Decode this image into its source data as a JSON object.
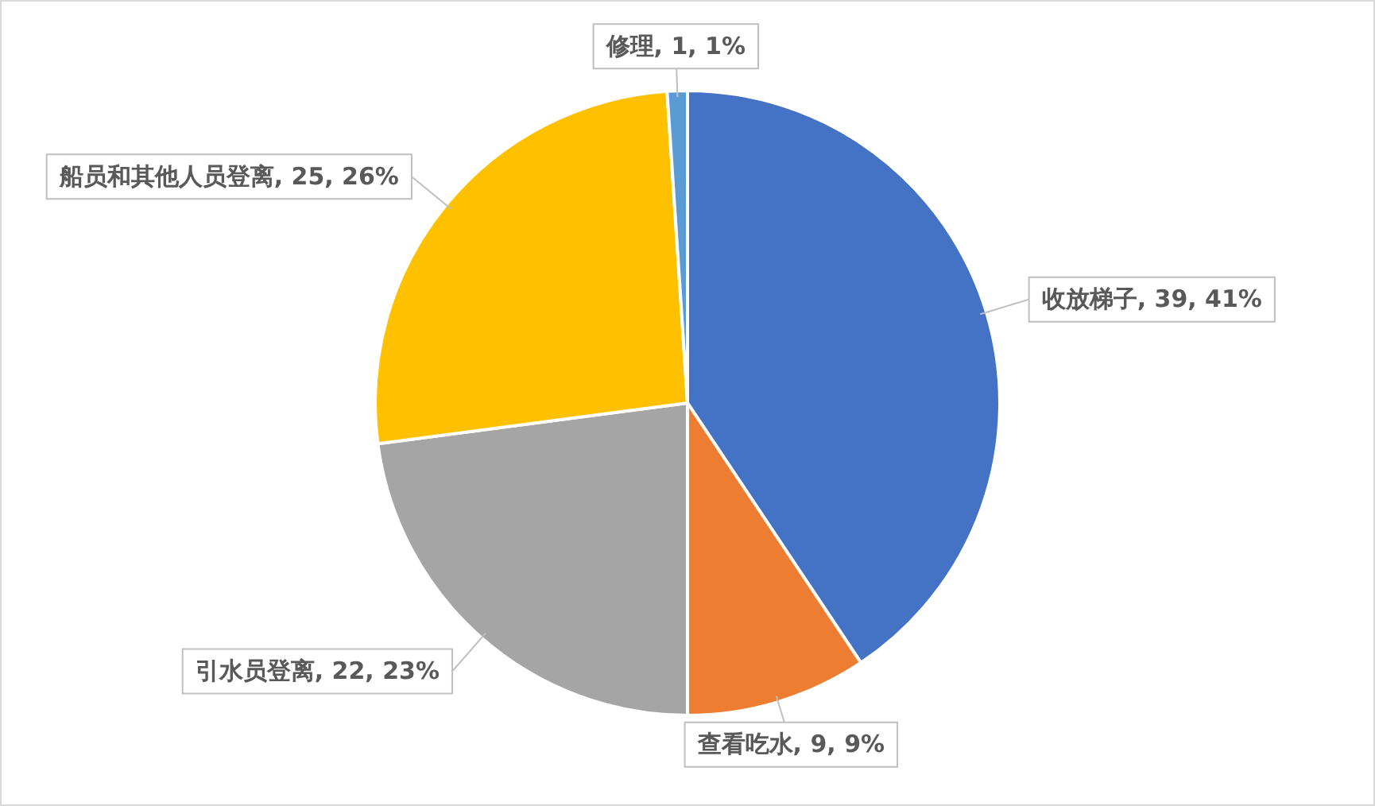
{
  "chart_data": {
    "type": "pie",
    "categories": [
      "收放梯子",
      "查看吃水",
      "引水员登离",
      "船员和其他人员登离",
      "修理"
    ],
    "values": [
      39,
      9,
      22,
      25,
      1
    ],
    "colors": [
      "#4472c4",
      "#ed7d31",
      "#a5a5a5",
      "#ffc000",
      "#5b9bd5"
    ],
    "value_labels": [
      "39, 41%",
      "9, 9%",
      "22, 23%",
      "25, 26%",
      "1, 1%"
    ],
    "legend": false
  }
}
